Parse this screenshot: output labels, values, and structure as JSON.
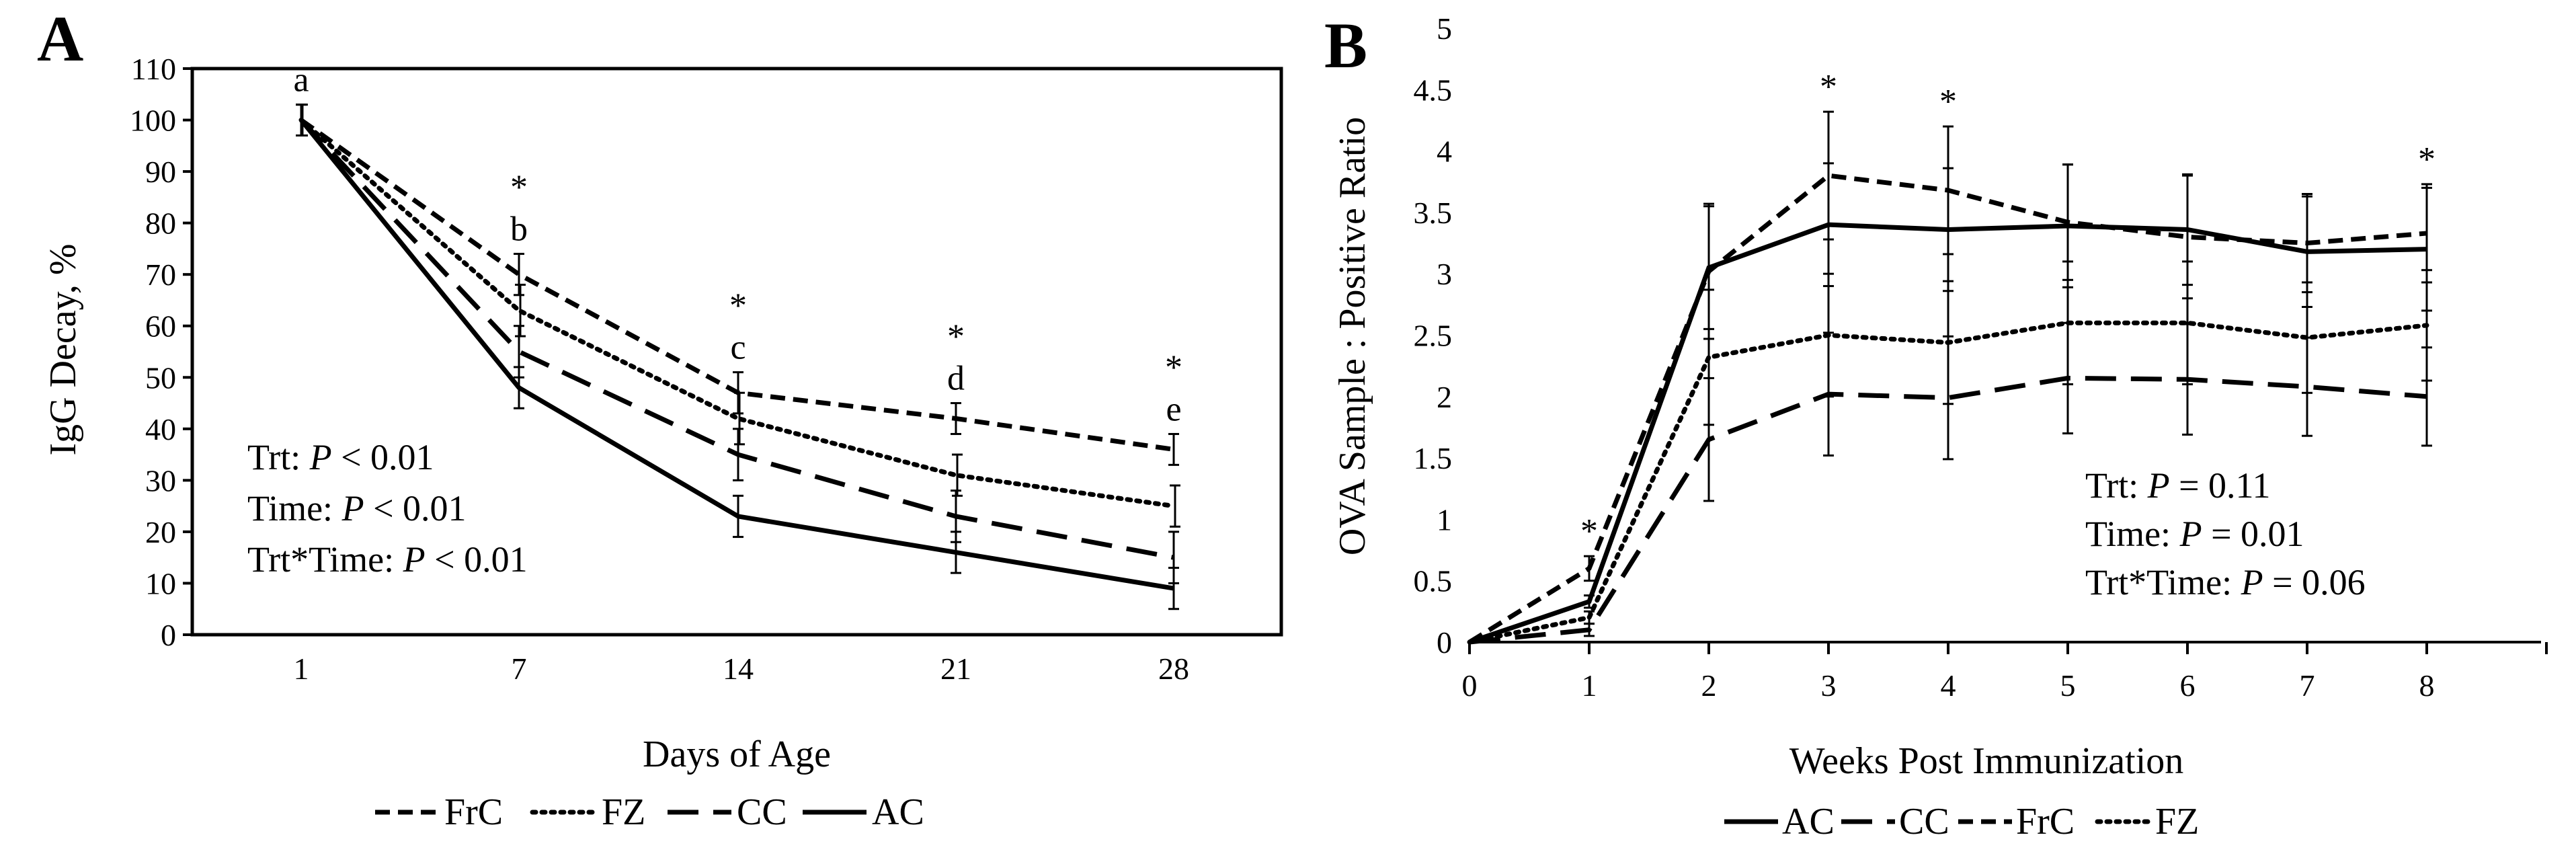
{
  "chart_data": [
    {
      "panel": "A",
      "type": "line",
      "xlabel": "Days of Age",
      "ylabel": "IgG Decay, %",
      "categories": [
        "1",
        "7",
        "14",
        "21",
        "28"
      ],
      "ylim": [
        0,
        110
      ],
      "yticks": [
        "0",
        "10",
        "20",
        "30",
        "40",
        "50",
        "60",
        "70",
        "80",
        "90",
        "100",
        "110"
      ],
      "series": [
        {
          "name": "FrC",
          "style": "short-dash",
          "values": [
            100,
            70,
            47,
            42,
            36
          ],
          "errors": [
            3,
            4,
            4,
            3,
            3
          ]
        },
        {
          "name": "FZ",
          "style": "dotted",
          "values": [
            100,
            63,
            42,
            31,
            25
          ],
          "errors": [
            3,
            5,
            5,
            4,
            4
          ]
        },
        {
          "name": "CC",
          "style": "long-dash",
          "values": [
            100,
            55,
            35,
            23,
            15
          ],
          "errors": [
            3,
            5,
            5,
            5,
            5
          ]
        },
        {
          "name": "AC",
          "style": "solid",
          "values": [
            100,
            48,
            23,
            16,
            9
          ],
          "errors": [
            3,
            4,
            4,
            4,
            4
          ]
        }
      ],
      "letters": [
        "a",
        "b",
        "c",
        "d",
        "e"
      ],
      "significance": [
        "",
        "*",
        "*",
        "*",
        "*"
      ],
      "stats": [
        {
          "label": "Trt: ",
          "p_label": "P",
          "value": " < 0.01"
        },
        {
          "label": "Time: ",
          "p_label": "P",
          "value": " < 0.01"
        },
        {
          "label": "Trt*Time: ",
          "p_label": "P",
          "value": " < 0.01"
        }
      ],
      "legend_position": "bottom"
    },
    {
      "panel": "B",
      "type": "line",
      "xlabel": "Weeks Post Immunization",
      "ylabel": "OVA Sample : Positive Ratio",
      "x": [
        0,
        1,
        2,
        3,
        4,
        5,
        6,
        7,
        8
      ],
      "xticks": [
        "0",
        "1",
        "2",
        "3",
        "4",
        "5",
        "6",
        "7",
        "8"
      ],
      "ylim": [
        0,
        5
      ],
      "yticks": [
        "0",
        "0.5",
        "1",
        "1.5",
        "2",
        "2.5",
        "3",
        "3.5",
        "4",
        "4.5",
        "5"
      ],
      "series": [
        {
          "name": "AC",
          "style": "solid",
          "values": [
            0,
            0.33,
            3.05,
            3.4,
            3.36,
            3.39,
            3.36,
            3.18,
            3.2
          ],
          "errors": [
            0,
            0.05,
            0.5,
            0.5,
            0.5,
            0.5,
            0.45,
            0.45,
            0.5
          ]
        },
        {
          "name": "CC",
          "style": "long-dash",
          "values": [
            0,
            0.1,
            1.65,
            2.02,
            1.99,
            2.15,
            2.14,
            2.08,
            2.0
          ],
          "errors": [
            0,
            0.05,
            0.5,
            0.5,
            0.5,
            0.45,
            0.45,
            0.4,
            0.4
          ]
        },
        {
          "name": "FrC",
          "style": "short-dash",
          "values": [
            0,
            0.6,
            3.02,
            3.8,
            3.68,
            3.42,
            3.3,
            3.25,
            3.33
          ],
          "errors": [
            0,
            0.1,
            0.55,
            0.52,
            0.52,
            0.47,
            0.5,
            0.4,
            0.4
          ]
        },
        {
          "name": "FZ",
          "style": "dotted",
          "values": [
            0,
            0.2,
            2.32,
            2.5,
            2.44,
            2.6,
            2.6,
            2.48,
            2.58
          ],
          "errors": [
            0,
            0.05,
            0.55,
            0.5,
            0.5,
            0.5,
            0.5,
            0.45,
            0.45
          ]
        }
      ],
      "significance": [
        "",
        "*",
        "",
        "*",
        "*",
        "",
        "",
        "",
        "*"
      ],
      "stats": [
        {
          "label": "Trt: ",
          "p_label": "P",
          "value": " = 0.11"
        },
        {
          "label": "Time: ",
          "p_label": "P",
          "value": " = 0.01"
        },
        {
          "label": "Trt*Time: ",
          "p_label": "P",
          "value": " = 0.06"
        }
      ],
      "legend_position": "bottom"
    }
  ]
}
